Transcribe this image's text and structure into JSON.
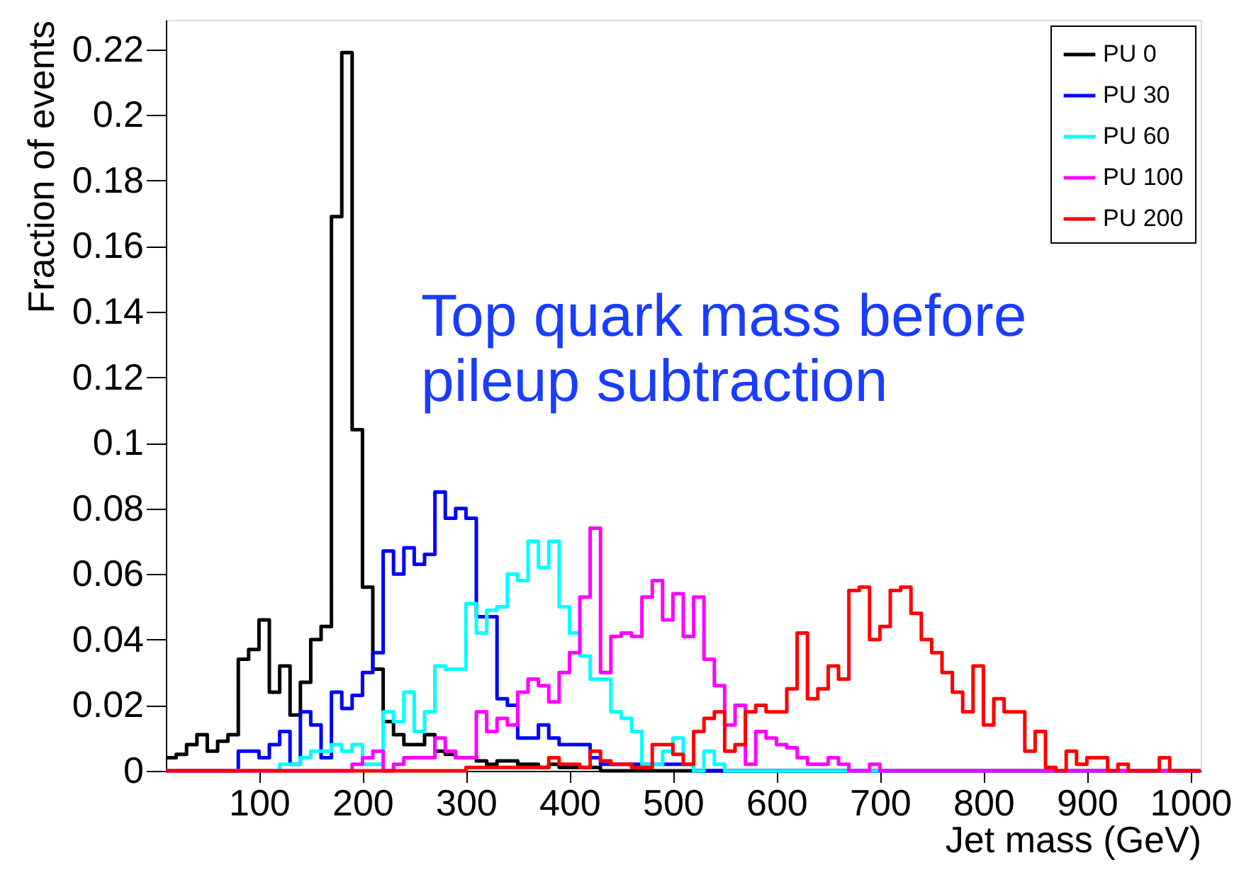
{
  "chart_data": {
    "type": "histogram",
    "xlabel": "Jet mass (GeV)",
    "ylabel": "Fraction of events",
    "annotations": [
      "Top quark mass before\npileup subtraction"
    ],
    "bins": [
      10,
      20,
      30,
      40,
      50,
      60,
      70,
      80,
      90,
      100,
      110,
      120,
      130,
      140,
      150,
      160,
      170,
      180,
      190,
      200,
      210,
      220,
      230,
      240,
      250,
      260,
      270,
      280,
      290,
      300,
      310,
      320,
      330,
      340,
      350,
      360,
      370,
      380,
      390,
      400,
      410,
      420,
      430,
      440,
      450,
      460,
      470,
      480,
      490,
      500,
      510,
      520,
      530,
      540,
      550,
      560,
      570,
      580,
      590,
      600,
      610,
      620,
      630,
      640,
      650,
      660,
      670,
      680,
      690,
      700,
      710,
      720,
      730,
      740,
      750,
      760,
      770,
      780,
      790,
      800,
      810,
      820,
      830,
      840,
      850,
      860,
      870,
      880,
      890,
      900,
      910,
      920,
      930,
      940,
      950,
      960,
      970,
      980,
      990,
      1000,
      1010
    ],
    "series": [
      {
        "name": "PU 0",
        "color": "#000000",
        "values": [
          0.004,
          0.005,
          0.008,
          0.011,
          0.006,
          0.009,
          0.011,
          0.034,
          0.037,
          0.046,
          0.024,
          0.032,
          0.017,
          0.027,
          0.04,
          0.044,
          0.169,
          0.219,
          0.104,
          0.056,
          0.031,
          0.015,
          0.011,
          0.008,
          0.008,
          0.011,
          0.006,
          0.005,
          0.004,
          0.004,
          0.003,
          0.002,
          0.003,
          0.003,
          0.002,
          0.002,
          0.001,
          0.002,
          0.001,
          0.001,
          0.001,
          0.001,
          0,
          0,
          0,
          0,
          0,
          0,
          0,
          0,
          0,
          0,
          0,
          0,
          0,
          0,
          0,
          0,
          0,
          0,
          0,
          0,
          0,
          0,
          0,
          0,
          0,
          0,
          0,
          0,
          0,
          0,
          0,
          0,
          0,
          0,
          0,
          0,
          0,
          0,
          0,
          0,
          0,
          0,
          0,
          0,
          0,
          0,
          0,
          0,
          0,
          0,
          0,
          0,
          0,
          0,
          0,
          0,
          0,
          0
        ]
      },
      {
        "name": "PU 30",
        "color": "#0000ff",
        "values": [
          0,
          0,
          0,
          0,
          0,
          0,
          0,
          0.006,
          0.006,
          0.004,
          0.008,
          0.012,
          0.002,
          0.018,
          0.014,
          0.004,
          0.024,
          0.019,
          0.023,
          0.03,
          0.036,
          0.067,
          0.06,
          0.068,
          0.063,
          0.066,
          0.085,
          0.077,
          0.08,
          0.077,
          0.047,
          0.047,
          0.022,
          0.02,
          0.01,
          0.01,
          0.014,
          0.01,
          0.008,
          0.008,
          0.008,
          0.004,
          0.002,
          0.002,
          0.002,
          0.002,
          0.002,
          0.002,
          0.002,
          0.002,
          0.002,
          0,
          0,
          0,
          0,
          0,
          0,
          0,
          0,
          0,
          0,
          0,
          0,
          0,
          0,
          0,
          0,
          0,
          0,
          0,
          0,
          0,
          0,
          0,
          0,
          0,
          0,
          0,
          0,
          0,
          0,
          0,
          0,
          0,
          0,
          0,
          0,
          0,
          0,
          0,
          0,
          0,
          0,
          0,
          0,
          0,
          0,
          0,
          0,
          0
        ]
      },
      {
        "name": "PU 60",
        "color": "#00ffff",
        "values": [
          0,
          0,
          0,
          0,
          0,
          0,
          0,
          0,
          0,
          0,
          0,
          0.002,
          0.002,
          0.004,
          0.006,
          0.006,
          0.008,
          0.006,
          0.008,
          0.002,
          0.002,
          0.018,
          0.015,
          0.024,
          0.012,
          0.018,
          0.032,
          0.031,
          0.031,
          0.051,
          0.042,
          0.049,
          0.05,
          0.06,
          0.058,
          0.07,
          0.062,
          0.07,
          0.05,
          0.042,
          0.035,
          0.028,
          0.028,
          0.018,
          0.016,
          0.012,
          0.002,
          0.002,
          0.006,
          0.01,
          0.002,
          0,
          0.006,
          0.002,
          0,
          0,
          0,
          0,
          0,
          0,
          0,
          0,
          0,
          0,
          0,
          0,
          0,
          0,
          0,
          0,
          0,
          0,
          0,
          0,
          0,
          0,
          0,
          0,
          0,
          0,
          0,
          0,
          0,
          0,
          0,
          0,
          0,
          0,
          0,
          0,
          0,
          0,
          0,
          0,
          0,
          0,
          0,
          0,
          0,
          0
        ]
      },
      {
        "name": "PU 100",
        "color": "#ff00ff",
        "values": [
          0,
          0,
          0,
          0,
          0,
          0,
          0,
          0,
          0,
          0,
          0,
          0,
          0,
          0,
          0,
          0,
          0,
          0,
          0.002,
          0.004,
          0.006,
          0,
          0.002,
          0.004,
          0.004,
          0.004,
          0.01,
          0.006,
          0.004,
          0.004,
          0.018,
          0.012,
          0.016,
          0.014,
          0.024,
          0.028,
          0.026,
          0.021,
          0.03,
          0.036,
          0.053,
          0.074,
          0.03,
          0.041,
          0.042,
          0.041,
          0.053,
          0.058,
          0.046,
          0.054,
          0.041,
          0.053,
          0.034,
          0.026,
          0.014,
          0.02,
          0.002,
          0.012,
          0.01,
          0.008,
          0.007,
          0.004,
          0.002,
          0.002,
          0.004,
          0.002,
          0,
          0,
          0.002,
          0,
          0,
          0,
          0,
          0,
          0,
          0,
          0,
          0,
          0,
          0,
          0,
          0,
          0,
          0,
          0,
          0,
          0,
          0,
          0,
          0,
          0,
          0,
          0,
          0,
          0,
          0,
          0,
          0,
          0,
          0
        ]
      },
      {
        "name": "PU 200",
        "color": "#ff0000",
        "values": [
          0,
          0,
          0,
          0,
          0,
          0,
          0,
          0,
          0,
          0,
          0,
          0,
          0,
          0,
          0,
          0,
          0,
          0,
          0,
          0,
          0,
          0,
          0,
          0,
          0,
          0,
          0,
          0,
          0,
          0.001,
          0.001,
          0.001,
          0.001,
          0.001,
          0.001,
          0.001,
          0.001,
          0.004,
          0.002,
          0.002,
          0.001,
          0.006,
          0.003,
          0.002,
          0.002,
          0.001,
          0.001,
          0.008,
          0.008,
          0.005,
          0.002,
          0.012,
          0.016,
          0.018,
          0.006,
          0.008,
          0.018,
          0.02,
          0.018,
          0.018,
          0.025,
          0.042,
          0.022,
          0.025,
          0.032,
          0.028,
          0.055,
          0.056,
          0.04,
          0.044,
          0.055,
          0.056,
          0.048,
          0.04,
          0.036,
          0.03,
          0.024,
          0.018,
          0.032,
          0.014,
          0.022,
          0.018,
          0.018,
          0.006,
          0.012,
          0.001,
          0,
          0.006,
          0.002,
          0.004,
          0.004,
          0,
          0.002,
          0,
          0,
          0,
          0.004,
          0,
          0,
          0
        ]
      }
    ],
    "xlim": [
      10,
      1010
    ],
    "ylim": [
      0,
      0.229
    ],
    "xticks": [
      100,
      200,
      300,
      400,
      500,
      600,
      700,
      800,
      900,
      1000
    ],
    "yticks": [
      0,
      0.02,
      0.04,
      0.06,
      0.08,
      0.1,
      0.12,
      0.14,
      0.16,
      0.18,
      0.2,
      0.22
    ],
    "grid": false,
    "legend": "top right",
    "line_style": "solid"
  }
}
